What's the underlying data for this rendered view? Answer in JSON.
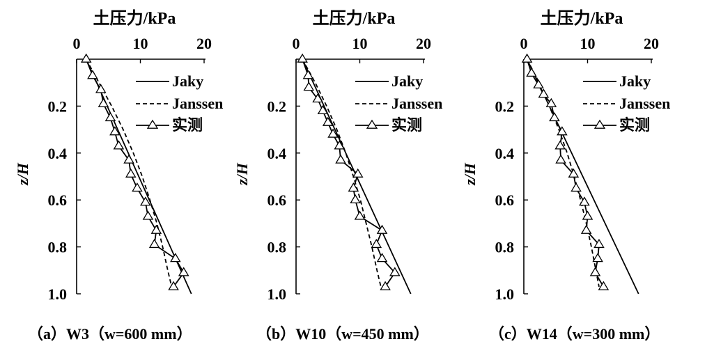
{
  "chart_data": [
    {
      "type": "line",
      "title": "",
      "caption": "（a）W3（w=600 mm）",
      "xlabel": "土压力/kPa",
      "ylabel": "z/H",
      "xlim": [
        0,
        20
      ],
      "ylim": [
        0,
        1.0
      ],
      "x_axis_position": "top",
      "y_inverted": true,
      "xticks": [
        "0",
        "10",
        "20"
      ],
      "yticks": [
        "0.2",
        "0.4",
        "0.6",
        "0.8",
        "1.0"
      ],
      "legend_position": "top-right",
      "series": [
        {
          "name": "Jaky",
          "style": "solid",
          "points": [
            [
              1.5,
              0
            ],
            [
              18.0,
              1.0
            ]
          ]
        },
        {
          "name": "Janssen",
          "style": "dashed",
          "points": [
            [
              1.5,
              0
            ],
            [
              3.5,
              0.1
            ],
            [
              5.5,
              0.2
            ],
            [
              7.3,
              0.3
            ],
            [
              8.9,
              0.4
            ],
            [
              10.3,
              0.5
            ],
            [
              11.5,
              0.6
            ],
            [
              12.6,
              0.7
            ],
            [
              13.5,
              0.8
            ],
            [
              14.3,
              0.9
            ],
            [
              15.0,
              0.98
            ]
          ]
        },
        {
          "name": "实测",
          "style": "solid-triangle",
          "points": [
            [
              1.5,
              0.0
            ],
            [
              2.5,
              0.07
            ],
            [
              3.8,
              0.13
            ],
            [
              4.2,
              0.19
            ],
            [
              5.3,
              0.25
            ],
            [
              6.0,
              0.31
            ],
            [
              6.6,
              0.37
            ],
            [
              8.2,
              0.43
            ],
            [
              8.5,
              0.49
            ],
            [
              9.5,
              0.55
            ],
            [
              10.8,
              0.61
            ],
            [
              11.2,
              0.67
            ],
            [
              12.5,
              0.73
            ],
            [
              12.2,
              0.79
            ],
            [
              15.5,
              0.85
            ],
            [
              16.8,
              0.91
            ],
            [
              15.2,
              0.97
            ]
          ]
        }
      ]
    },
    {
      "type": "line",
      "title": "",
      "caption": "（b）W10（w=450 mm）",
      "xlabel": "土压力/kPa",
      "ylabel": "z/H",
      "xlim": [
        0,
        20
      ],
      "ylim": [
        0,
        1.0
      ],
      "x_axis_position": "top",
      "y_inverted": true,
      "xticks": [
        "0",
        "10",
        "20"
      ],
      "yticks": [
        "0.2",
        "0.4",
        "0.6",
        "0.8",
        "1.0"
      ],
      "legend_position": "top-right",
      "series": [
        {
          "name": "Jaky",
          "style": "solid",
          "points": [
            [
              1.0,
              0
            ],
            [
              18.0,
              1.0
            ]
          ]
        },
        {
          "name": "Janssen",
          "style": "dashed",
          "points": [
            [
              1.0,
              0
            ],
            [
              3.0,
              0.1
            ],
            [
              4.8,
              0.2
            ],
            [
              6.4,
              0.3
            ],
            [
              7.8,
              0.4
            ],
            [
              9.0,
              0.5
            ],
            [
              10.1,
              0.6
            ],
            [
              11.0,
              0.7
            ],
            [
              11.9,
              0.8
            ],
            [
              12.7,
              0.9
            ],
            [
              13.4,
              0.98
            ]
          ]
        },
        {
          "name": "实测",
          "style": "solid-triangle",
          "points": [
            [
              1.0,
              0.0
            ],
            [
              1.9,
              0.07
            ],
            [
              2.0,
              0.12
            ],
            [
              3.4,
              0.17
            ],
            [
              4.2,
              0.22
            ],
            [
              5.0,
              0.27
            ],
            [
              5.8,
              0.32
            ],
            [
              6.8,
              0.37
            ],
            [
              7.0,
              0.43
            ],
            [
              9.7,
              0.49
            ],
            [
              9.0,
              0.55
            ],
            [
              9.3,
              0.6
            ],
            [
              10.0,
              0.67
            ],
            [
              13.5,
              0.73
            ],
            [
              12.6,
              0.79
            ],
            [
              13.5,
              0.85
            ],
            [
              15.5,
              0.91
            ],
            [
              14.0,
              0.97
            ]
          ]
        }
      ]
    },
    {
      "type": "line",
      "title": "",
      "caption": "（c）W14（w=300 mm）",
      "xlabel": "土压力/kPa",
      "ylabel": "z/H",
      "xlim": [
        0,
        20
      ],
      "ylim": [
        0,
        1.0
      ],
      "x_axis_position": "top",
      "y_inverted": true,
      "xticks": [
        "0",
        "10",
        "20"
      ],
      "yticks": [
        "0.2",
        "0.4",
        "0.6",
        "0.8",
        "1.0"
      ],
      "legend_position": "top-right",
      "series": [
        {
          "name": "Jaky",
          "style": "solid",
          "points": [
            [
              0.5,
              0
            ],
            [
              18.0,
              1.0
            ]
          ]
        },
        {
          "name": "Janssen",
          "style": "dashed",
          "points": [
            [
              0.5,
              0
            ],
            [
              2.4,
              0.1
            ],
            [
              4.0,
              0.2
            ],
            [
              5.5,
              0.3
            ],
            [
              6.8,
              0.4
            ],
            [
              7.9,
              0.5
            ],
            [
              8.9,
              0.6
            ],
            [
              9.8,
              0.7
            ],
            [
              10.6,
              0.8
            ],
            [
              11.3,
              0.9
            ],
            [
              11.8,
              0.97
            ]
          ]
        },
        {
          "name": "实测",
          "style": "solid-triangle",
          "points": [
            [
              0.5,
              0.0
            ],
            [
              1.2,
              0.06
            ],
            [
              2.3,
              0.11
            ],
            [
              3.1,
              0.15
            ],
            [
              4.3,
              0.19
            ],
            [
              4.8,
              0.25
            ],
            [
              6.0,
              0.31
            ],
            [
              5.7,
              0.37
            ],
            [
              5.8,
              0.43
            ],
            [
              7.8,
              0.49
            ],
            [
              8.2,
              0.55
            ],
            [
              9.5,
              0.61
            ],
            [
              10.0,
              0.67
            ],
            [
              9.8,
              0.73
            ],
            [
              11.8,
              0.79
            ],
            [
              11.6,
              0.85
            ],
            [
              11.2,
              0.91
            ],
            [
              12.5,
              0.97
            ]
          ]
        }
      ]
    }
  ]
}
